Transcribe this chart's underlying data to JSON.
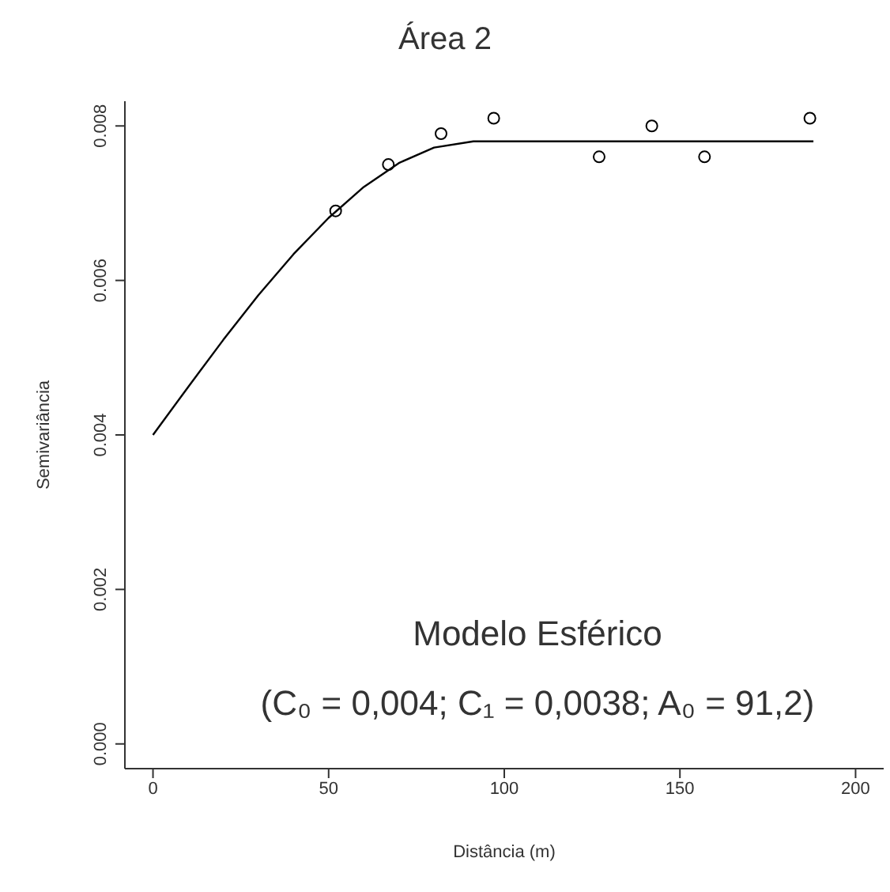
{
  "chart_data": {
    "type": "scatter",
    "title": "Área 2",
    "xlabel": "Distância (m)",
    "ylabel": "Semivariância",
    "xlim": [
      -8,
      208
    ],
    "xticks": [
      0,
      50,
      100,
      150,
      200
    ],
    "ylim": [
      -0.00032,
      0.00832
    ],
    "yticks": [
      {
        "value": 0,
        "label": "0.000"
      },
      {
        "value": 0.002,
        "label": "0.002"
      },
      {
        "value": 0.004,
        "label": "0.004"
      },
      {
        "value": 0.006,
        "label": "0.006"
      },
      {
        "value": 0.008,
        "label": "0.008"
      }
    ],
    "grid": false,
    "legend": false,
    "marker": "circle",
    "series": [
      {
        "type": "scatter",
        "color": "#000000",
        "x": [
          52,
          67,
          82,
          97,
          127,
          142,
          157,
          187
        ],
        "values": [
          0.0069,
          0.0075,
          0.0079,
          0.0081,
          0.0076,
          0.008,
          0.0076,
          0.0081
        ]
      },
      {
        "type": "line",
        "color": "#000000",
        "marker": "none",
        "line_style": "solid",
        "x": [
          0,
          10,
          20,
          30,
          40,
          50,
          60,
          70,
          80,
          91.2,
          188
        ],
        "values": [
          0.004,
          0.00462,
          0.00523,
          0.00581,
          0.00634,
          0.00681,
          0.00721,
          0.00752,
          0.00772,
          0.0078,
          0.0078
        ]
      }
    ],
    "annotations": [
      "Modelo Esférico",
      "(C₀ = 0,004; C₁ = 0,0038; A₀ = 91,2)"
    ]
  }
}
